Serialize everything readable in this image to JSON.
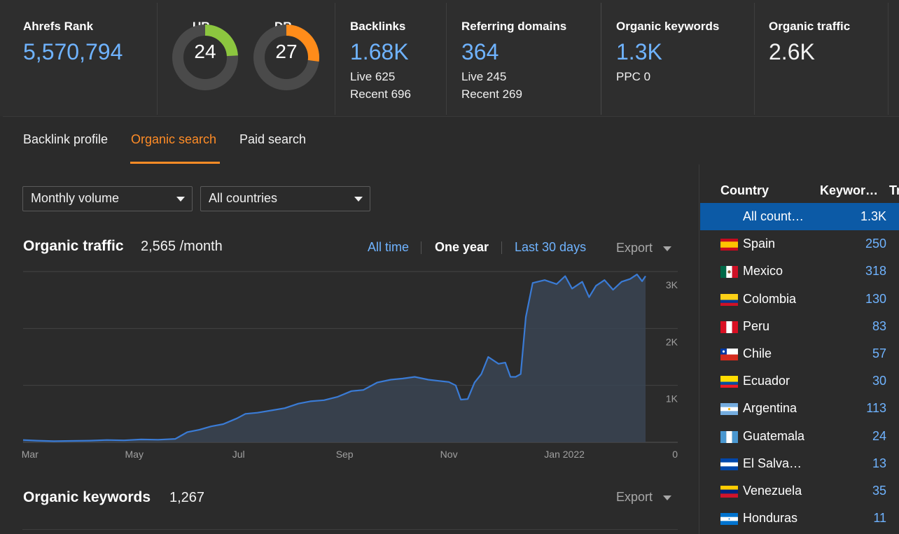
{
  "metrics": {
    "ahrefs_rank": {
      "label": "Ahrefs Rank",
      "value": "5,570,794"
    },
    "ur": {
      "label": "UR",
      "value": "24",
      "fraction": 0.24,
      "color": "#8cc63f"
    },
    "dr": {
      "label": "DR",
      "value": "27",
      "fraction": 0.27,
      "color": "#ff8c1a"
    },
    "backlinks": {
      "label": "Backlinks",
      "value": "1.68K",
      "live": "Live 625",
      "recent": "Recent 696"
    },
    "referring_domains": {
      "label": "Referring domains",
      "value": "364",
      "live": "Live 245",
      "recent": "Recent 269"
    },
    "organic_keywords": {
      "label": "Organic keywords",
      "value": "1.3K",
      "ppc": "PPC 0"
    },
    "organic_traffic": {
      "label": "Organic traffic",
      "value": "2.6K"
    }
  },
  "tabs": [
    {
      "label": "Backlink profile",
      "active": false
    },
    {
      "label": "Organic search",
      "active": true
    },
    {
      "label": "Paid search",
      "active": false
    }
  ],
  "filters": {
    "volume": "Monthly volume",
    "country": "All countries"
  },
  "traffic_section": {
    "title": "Organic traffic",
    "value": "2,565 /month",
    "ranges": [
      "All time",
      "One year",
      "Last 30 days"
    ],
    "selected_range": "One year",
    "export": "Export"
  },
  "keywords_section": {
    "title": "Organic keywords",
    "value": "1,267",
    "export": "Export"
  },
  "chart_data": {
    "type": "area",
    "title": "",
    "xlabel": "",
    "ylabel": "",
    "x_ticks": [
      "Mar",
      "May",
      "Jul",
      "Sep",
      "Nov",
      "Jan 2022"
    ],
    "y_ticks": [
      "3K",
      "2K",
      "1K",
      "0"
    ],
    "ylim": [
      0,
      3000
    ],
    "grid": true,
    "x_range": [
      "2021-02-25",
      "2022-02-24"
    ],
    "color": "#3a7bd5",
    "series": [
      {
        "x": [
          "2021-02-25",
          "2021-03-05",
          "2021-03-15",
          "2021-03-25",
          "2021-04-05",
          "2021-04-15",
          "2021-04-25",
          "2021-05-05",
          "2021-05-15",
          "2021-05-25",
          "2021-06-01",
          "2021-06-08",
          "2021-06-15",
          "2021-06-22",
          "2021-06-30",
          "2021-07-05",
          "2021-07-12",
          "2021-07-20",
          "2021-07-28",
          "2021-08-05",
          "2021-08-12",
          "2021-08-20",
          "2021-08-28",
          "2021-09-05",
          "2021-09-12",
          "2021-09-20",
          "2021-09-28",
          "2021-10-05",
          "2021-10-12",
          "2021-10-20",
          "2021-10-26",
          "2021-11-01",
          "2021-11-05",
          "2021-11-08",
          "2021-11-12",
          "2021-11-16",
          "2021-11-20",
          "2021-11-24",
          "2021-11-30",
          "2021-12-04",
          "2021-12-07",
          "2021-12-10",
          "2021-12-13",
          "2021-12-16",
          "2021-12-20",
          "2021-12-27",
          "2022-01-03",
          "2022-01-08",
          "2022-01-12",
          "2022-01-18",
          "2022-01-22",
          "2022-01-26",
          "2022-01-31",
          "2022-02-05",
          "2022-02-10",
          "2022-02-15",
          "2022-02-19",
          "2022-02-22",
          "2022-02-24"
        ],
        "values": [
          40,
          30,
          20,
          25,
          30,
          40,
          35,
          50,
          45,
          60,
          180,
          220,
          280,
          320,
          420,
          500,
          520,
          560,
          600,
          680,
          720,
          740,
          800,
          900,
          920,
          1050,
          1100,
          1120,
          1150,
          1100,
          1080,
          1060,
          1000,
          750,
          760,
          1050,
          1200,
          1500,
          1380,
          1400,
          1150,
          1150,
          1200,
          2200,
          2800,
          2850,
          2780,
          2920,
          2700,
          2820,
          2550,
          2750,
          2850,
          2680,
          2820,
          2870,
          2950,
          2830,
          2920
        ]
      }
    ]
  },
  "country_table": {
    "headers": [
      "Country",
      "Keywor…",
      "Tr"
    ],
    "rows": [
      {
        "name": "All count…",
        "kw": "1.3K",
        "flag": "none",
        "selected": true
      },
      {
        "name": "Spain",
        "kw": "250",
        "flag": "es"
      },
      {
        "name": "Mexico",
        "kw": "318",
        "flag": "mx"
      },
      {
        "name": "Colombia",
        "kw": "130",
        "flag": "co"
      },
      {
        "name": "Peru",
        "kw": "83",
        "flag": "pe"
      },
      {
        "name": "Chile",
        "kw": "57",
        "flag": "cl"
      },
      {
        "name": "Ecuador",
        "kw": "30",
        "flag": "ec"
      },
      {
        "name": "Argentina",
        "kw": "113",
        "flag": "ar"
      },
      {
        "name": "Guatemala",
        "kw": "24",
        "flag": "gt"
      },
      {
        "name": "El Salva…",
        "kw": "13",
        "flag": "sv"
      },
      {
        "name": "Venezuela",
        "kw": "35",
        "flag": "ve"
      },
      {
        "name": "Honduras",
        "kw": "11",
        "flag": "hn"
      }
    ]
  }
}
